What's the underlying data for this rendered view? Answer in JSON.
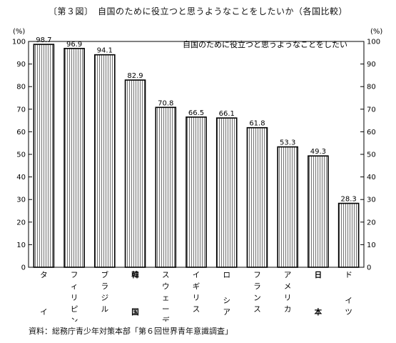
{
  "figure_title": "〔第３図〕　自国のために役立つと思うようなことをしたいか（各国比較）",
  "source": "資料：総務庁青少年対策本部「第６回世界青年意識調査」",
  "chart_data": {
    "type": "bar",
    "title": "自国のために役立つと思うようなことをしたい",
    "unit_left": "(%)",
    "unit_right": "(%)",
    "ylim": [
      0,
      100
    ],
    "yticks": [
      0,
      10,
      20,
      30,
      40,
      50,
      60,
      70,
      80,
      90,
      100
    ],
    "grid": false,
    "categories": [
      {
        "label": "タイ",
        "top": [
          "タ"
        ],
        "bottom": [
          "イ"
        ],
        "highlight": false
      },
      {
        "label": "フィリピン",
        "top": [
          "フ",
          "ィ",
          "リ",
          "ピ",
          "ン"
        ],
        "bottom": [],
        "highlight": false
      },
      {
        "label": "ブラジル",
        "top": [
          "ブ",
          "ラ",
          "ジ",
          "ル"
        ],
        "bottom": [],
        "highlight": false
      },
      {
        "label": "韓国",
        "top": [
          "韓"
        ],
        "bottom": [
          "国"
        ],
        "highlight": true
      },
      {
        "label": "スウェーデン",
        "top": [
          "ス",
          "ウ",
          "ェ",
          "ー",
          "デ",
          "ン"
        ],
        "bottom": [],
        "highlight": false
      },
      {
        "label": "イギリス",
        "top": [
          "イ",
          "ギ",
          "リ",
          "ス"
        ],
        "bottom": [],
        "highlight": false
      },
      {
        "label": "ロシア",
        "top": [
          "ロ"
        ],
        "bottom": [
          "シ",
          "ア"
        ],
        "highlight": false
      },
      {
        "label": "フランス",
        "top": [
          "フ",
          "ラ",
          "ン",
          "ス"
        ],
        "bottom": [],
        "highlight": false
      },
      {
        "label": "アメリカ",
        "top": [
          "ア",
          "メ",
          "リ",
          "カ"
        ],
        "bottom": [],
        "highlight": false
      },
      {
        "label": "日本",
        "top": [
          "日"
        ],
        "bottom": [
          "本"
        ],
        "highlight": true
      },
      {
        "label": "ドイツ",
        "top": [
          "ド"
        ],
        "bottom": [
          "イ",
          "ツ"
        ],
        "highlight": false
      }
    ],
    "values": [
      98.7,
      96.9,
      94.1,
      82.9,
      70.8,
      66.5,
      66.1,
      61.8,
      53.3,
      49.3,
      28.3
    ],
    "value_labels": [
      "98.7",
      "96.9",
      "94.1",
      "82.9",
      "70.8",
      "66.5",
      "66.1",
      "61.8",
      "53.3",
      "49.3",
      "28.3"
    ]
  }
}
